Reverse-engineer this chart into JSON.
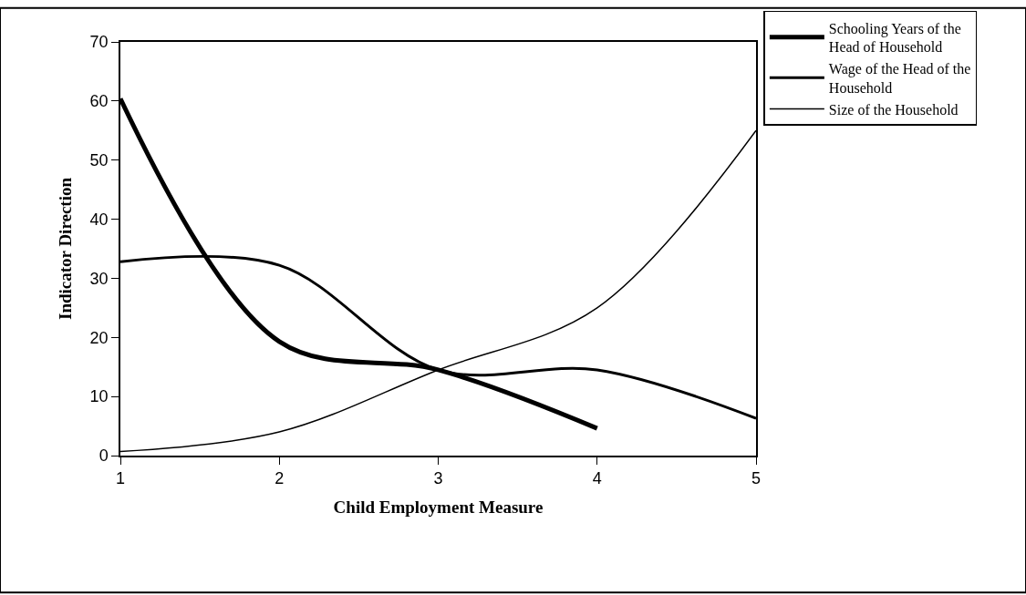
{
  "chart_data": {
    "type": "line",
    "xlabel": "Child Employment Measure",
    "ylabel": "Indicator Direction",
    "x": [
      1,
      2,
      3,
      4,
      5
    ],
    "xlim": [
      1,
      5
    ],
    "xticks": [
      1,
      2,
      3,
      4,
      5
    ],
    "ylim": [
      0,
      70
    ],
    "yticks": [
      0,
      10,
      20,
      30,
      40,
      50,
      60,
      70
    ],
    "legend": "top right",
    "marker": "none",
    "line_style": "solid",
    "series": [
      {
        "name": "Schooling Years of the Head of Household",
        "color": "#000000",
        "values": [
          60.4,
          19.3,
          14.5,
          4.6,
          null
        ]
      },
      {
        "name": "Wage of the Head of the Household",
        "color": "#000000",
        "values": [
          32.8,
          32.2,
          14.5,
          14.5,
          6.3
        ]
      },
      {
        "name": "Size of the Household",
        "color": "#000000",
        "values": [
          0.7,
          4,
          14.5,
          25,
          55
        ]
      }
    ]
  }
}
